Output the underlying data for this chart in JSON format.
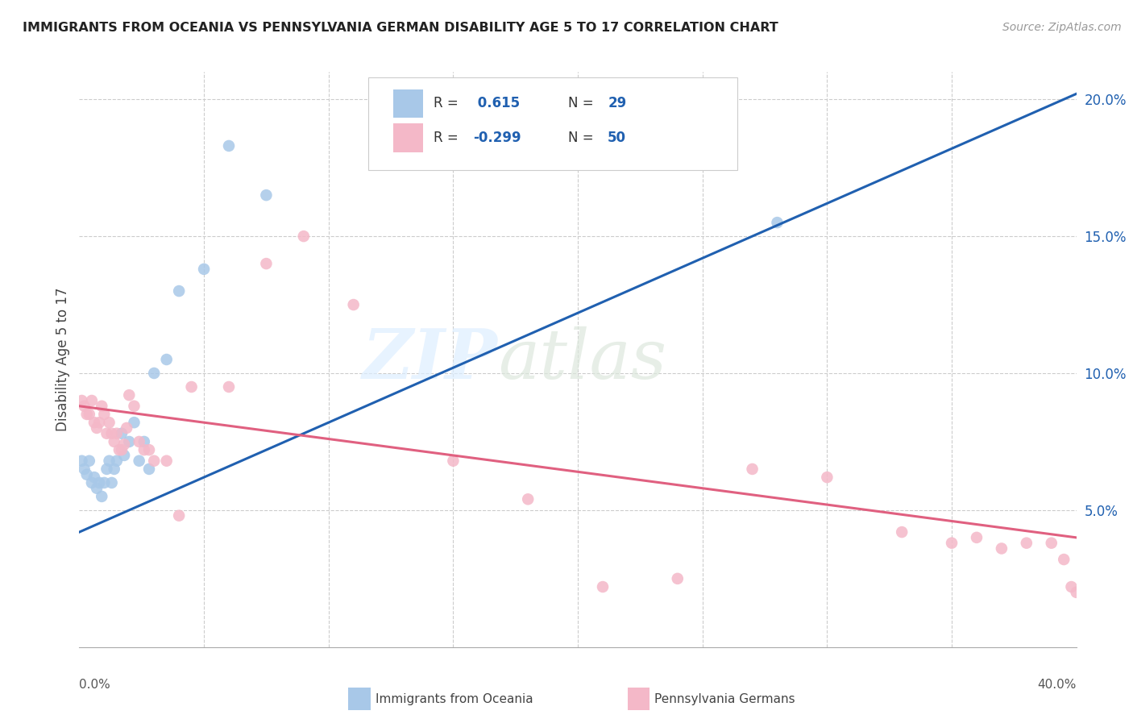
{
  "title": "IMMIGRANTS FROM OCEANIA VS PENNSYLVANIA GERMAN DISABILITY AGE 5 TO 17 CORRELATION CHART",
  "source": "Source: ZipAtlas.com",
  "ylabel": "Disability Age 5 to 17",
  "xmin": 0.0,
  "xmax": 0.4,
  "ymin": 0.0,
  "ymax": 0.21,
  "yticks": [
    0.05,
    0.1,
    0.15,
    0.2
  ],
  "ytick_labels": [
    "5.0%",
    "10.0%",
    "15.0%",
    "20.0%"
  ],
  "color_blue": "#a8c8e8",
  "color_pink": "#f4b8c8",
  "color_line_blue": "#2060b0",
  "color_line_pink": "#e06080",
  "watermark_zip": "ZIP",
  "watermark_atlas": "atlas",
  "blue_line_y_start": 0.042,
  "blue_line_y_end": 0.202,
  "pink_line_y_start": 0.088,
  "pink_line_y_end": 0.04,
  "blue_scatter_x": [
    0.001,
    0.002,
    0.003,
    0.004,
    0.005,
    0.006,
    0.007,
    0.008,
    0.009,
    0.01,
    0.011,
    0.012,
    0.013,
    0.014,
    0.015,
    0.017,
    0.018,
    0.02,
    0.022,
    0.024,
    0.026,
    0.028,
    0.03,
    0.035,
    0.04,
    0.05,
    0.06,
    0.075,
    0.28
  ],
  "blue_scatter_y": [
    0.068,
    0.065,
    0.063,
    0.068,
    0.06,
    0.062,
    0.058,
    0.06,
    0.055,
    0.06,
    0.065,
    0.068,
    0.06,
    0.065,
    0.068,
    0.078,
    0.07,
    0.075,
    0.082,
    0.068,
    0.075,
    0.065,
    0.1,
    0.105,
    0.13,
    0.138,
    0.183,
    0.165,
    0.155
  ],
  "pink_scatter_x": [
    0.001,
    0.002,
    0.003,
    0.004,
    0.005,
    0.006,
    0.007,
    0.008,
    0.009,
    0.01,
    0.011,
    0.012,
    0.013,
    0.014,
    0.015,
    0.016,
    0.017,
    0.018,
    0.019,
    0.02,
    0.022,
    0.024,
    0.026,
    0.028,
    0.03,
    0.035,
    0.04,
    0.045,
    0.06,
    0.075,
    0.09,
    0.11,
    0.15,
    0.18,
    0.21,
    0.24,
    0.27,
    0.3,
    0.33,
    0.35,
    0.36,
    0.37,
    0.38,
    0.39,
    0.395,
    0.398,
    0.4
  ],
  "pink_scatter_y": [
    0.09,
    0.088,
    0.085,
    0.085,
    0.09,
    0.082,
    0.08,
    0.082,
    0.088,
    0.085,
    0.078,
    0.082,
    0.078,
    0.075,
    0.078,
    0.072,
    0.072,
    0.074,
    0.08,
    0.092,
    0.088,
    0.075,
    0.072,
    0.072,
    0.068,
    0.068,
    0.048,
    0.095,
    0.095,
    0.14,
    0.15,
    0.125,
    0.068,
    0.054,
    0.022,
    0.025,
    0.065,
    0.062,
    0.042,
    0.038,
    0.04,
    0.036,
    0.038,
    0.038,
    0.032,
    0.022,
    0.02
  ]
}
